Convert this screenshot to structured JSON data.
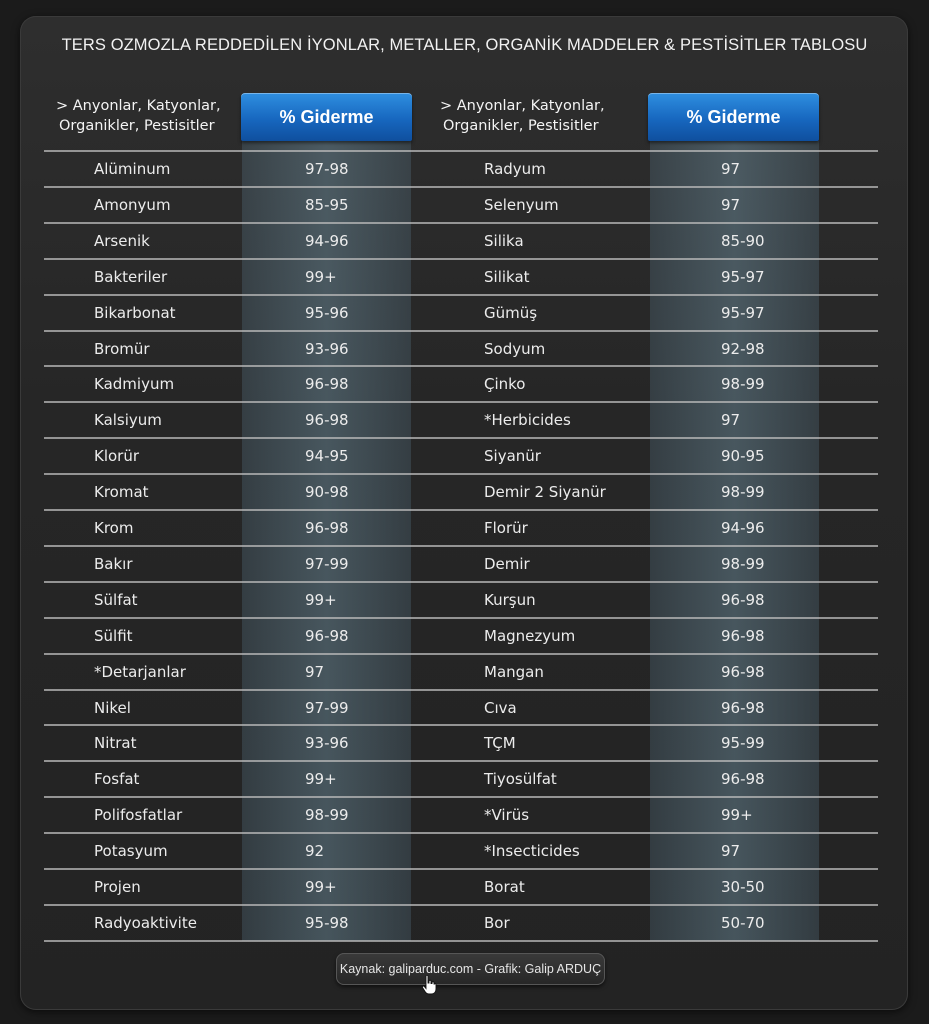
{
  "title": "TERS OZMOZLA REDDEDİLEN İYONLAR, METALLER, ORGANİK MADDELER & PESTİSİTLER TABLOSU",
  "headers": {
    "left_col_line1": "> Anyonlar, Katyonlar,",
    "left_col_line2": "Organikler, Pestisitler",
    "left_pill": "% Giderme",
    "right_col_line1": "> Anyonlar, Katyonlar,",
    "right_col_line2": "Organikler, Pestisitler",
    "right_pill": "% Giderme"
  },
  "left_rows": [
    {
      "name": "Alüminum",
      "value": "97-98"
    },
    {
      "name": "Amonyum",
      "value": "85-95"
    },
    {
      "name": "Arsenik",
      "value": "94-96"
    },
    {
      "name": "Bakteriler",
      "value": "99+"
    },
    {
      "name": "Bikarbonat",
      "value": "95-96"
    },
    {
      "name": "Bromür",
      "value": "93-96"
    },
    {
      "name": "Kadmiyum",
      "value": "96-98"
    },
    {
      "name": "Kalsiyum",
      "value": "96-98"
    },
    {
      "name": "Klorür",
      "value": "94-95"
    },
    {
      "name": "Kromat",
      "value": "90-98"
    },
    {
      "name": "Krom",
      "value": "96-98"
    },
    {
      "name": "Bakır",
      "value": "97-99"
    },
    {
      "name": "Sülfat",
      "value": "99+"
    },
    {
      "name": "Sülfit",
      "value": "96-98"
    },
    {
      "name": "*Detarjanlar",
      "value": "97"
    },
    {
      "name": "Nikel",
      "value": "97-99"
    },
    {
      "name": "Nitrat",
      "value": "93-96"
    },
    {
      "name": "Fosfat",
      "value": "99+"
    },
    {
      "name": "Polifosfatlar",
      "value": "98-99"
    },
    {
      "name": "Potasyum",
      "value": "92"
    },
    {
      "name": "Projen",
      "value": "99+"
    },
    {
      "name": "Radyoaktivite",
      "value": "95-98"
    }
  ],
  "right_rows": [
    {
      "name": "Radyum",
      "value": "97"
    },
    {
      "name": "Selenyum",
      "value": "97"
    },
    {
      "name": "Silika",
      "value": "85-90"
    },
    {
      "name": "Silikat",
      "value": "95-97"
    },
    {
      "name": "Gümüş",
      "value": "95-97"
    },
    {
      "name": "Sodyum",
      "value": "92-98"
    },
    {
      "name": "Çinko",
      "value": "98-99"
    },
    {
      "name": "*Herbicides",
      "value": "97"
    },
    {
      "name": "Siyanür",
      "value": "90-95"
    },
    {
      "name": "Demir 2 Siyanür",
      "value": "98-99"
    },
    {
      "name": "Florür",
      "value": "94-96"
    },
    {
      "name": "Demir",
      "value": "98-99"
    },
    {
      "name": "Kurşun",
      "value": "96-98"
    },
    {
      "name": "Magnezyum",
      "value": "96-98"
    },
    {
      "name": "Mangan",
      "value": "96-98"
    },
    {
      "name": "Cıva",
      "value": "96-98"
    },
    {
      "name": "TÇM",
      "value": "95-99"
    },
    {
      "name": "Tiyosülfat",
      "value": "96-98"
    },
    {
      "name": "*Virüs",
      "value": "99+"
    },
    {
      "name": "*Insecticides",
      "value": "97"
    },
    {
      "name": "Borat",
      "value": "30-50"
    },
    {
      "name": "Bor",
      "value": "50-70"
    }
  ],
  "source": "Kaynak: galiparduc.com - Grafik: Galip ARDUÇ",
  "colors": {
    "accent_blue": "#1767bf",
    "background": "#1b1b1b",
    "panel": "#2a2a2a"
  },
  "icons": {
    "cursor": "hand-pointer-icon"
  }
}
